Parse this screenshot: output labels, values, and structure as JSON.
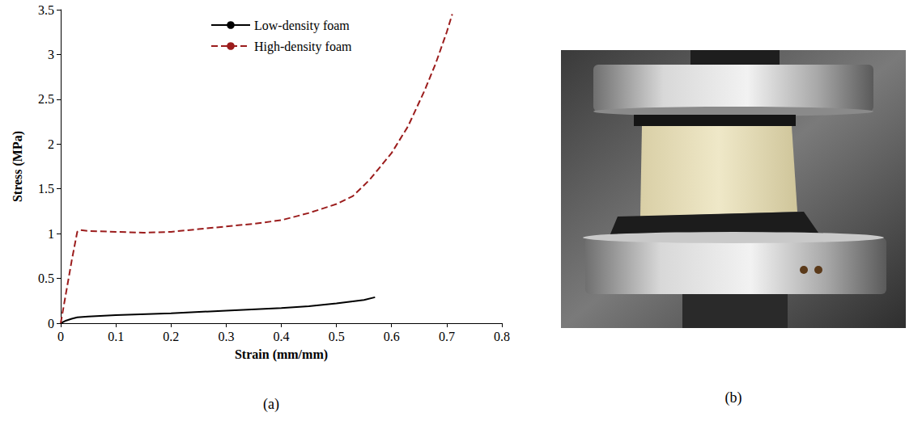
{
  "chart_data": {
    "type": "line",
    "annotations": [
      "(a)"
    ],
    "x_label": "Strain (mm/mm)",
    "y_label": "Stress (MPa)",
    "xlim": [
      0,
      0.8
    ],
    "xticks": [
      0,
      0.1,
      0.2,
      0.3,
      0.4,
      0.5,
      0.6,
      0.7,
      0.8
    ],
    "ylim": [
      0,
      3.5
    ],
    "yticks": [
      0,
      0.5,
      1,
      1.5,
      2,
      2.5,
      3,
      3.5
    ],
    "grid": false,
    "legend": "top",
    "series": [
      {
        "name": "Low-density foam",
        "color": "#000000",
        "line_style": "solid",
        "x": [
          0,
          0.01,
          0.02,
          0.03,
          0.05,
          0.1,
          0.2,
          0.3,
          0.4,
          0.45,
          0.5,
          0.55,
          0.57
        ],
        "values": [
          0,
          0.03,
          0.05,
          0.065,
          0.075,
          0.09,
          0.11,
          0.14,
          0.17,
          0.19,
          0.22,
          0.26,
          0.29
        ]
      },
      {
        "name": "High-density foam",
        "color": "#9b1c1c",
        "line_style": "dashed",
        "x": [
          0,
          0.01,
          0.02,
          0.03,
          0.035,
          0.05,
          0.1,
          0.15,
          0.2,
          0.25,
          0.3,
          0.35,
          0.4,
          0.45,
          0.5,
          0.53,
          0.56,
          0.6,
          0.63,
          0.66,
          0.68,
          0.7,
          0.71
        ],
        "values": [
          0,
          0.35,
          0.7,
          1.02,
          1.04,
          1.03,
          1.02,
          1.01,
          1.02,
          1.05,
          1.08,
          1.11,
          1.15,
          1.23,
          1.33,
          1.42,
          1.6,
          1.9,
          2.2,
          2.6,
          2.9,
          3.25,
          3.45
        ]
      }
    ]
  },
  "figure_b": {
    "label": "(b)"
  }
}
